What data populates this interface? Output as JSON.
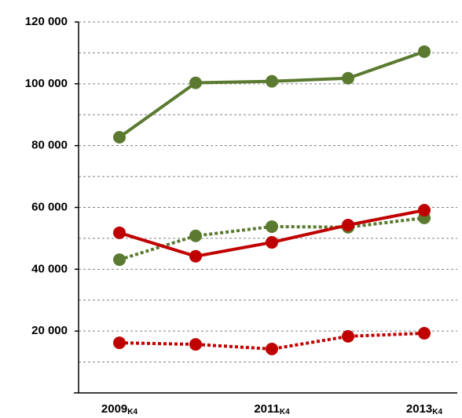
{
  "chart_data": {
    "type": "line",
    "categories": [
      "2009K4",
      null,
      "2011K4",
      null,
      "2013K4"
    ],
    "series": [
      {
        "color": "#5b7a30",
        "dash": "solid",
        "values": [
          82700,
          100300,
          100800,
          101800,
          110400
        ]
      },
      {
        "color": "#5b7a30",
        "dash": "dotted",
        "values": [
          43100,
          50800,
          53800,
          53600,
          56600
        ]
      },
      {
        "color": "#c00000",
        "dash": "solid",
        "values": [
          51800,
          44200,
          48700,
          54300,
          59100
        ]
      },
      {
        "color": "#c00000",
        "dash": "dotted",
        "values": [
          16200,
          15700,
          14200,
          18300,
          19300
        ]
      }
    ],
    "ylim": [
      0,
      120000
    ],
    "yticks": [
      {
        "value": 20000,
        "label": "20 000"
      },
      {
        "value": 40000,
        "label": "40 000"
      },
      {
        "value": 60000,
        "label": "60 000"
      },
      {
        "value": 80000,
        "label": "80 000"
      },
      {
        "value": 100000,
        "label": "100 000"
      },
      {
        "value": 120000,
        "label": "120 000"
      }
    ],
    "grid_yticks": [
      10000,
      20000,
      30000,
      40000,
      50000,
      60000,
      70000,
      80000,
      90000,
      100000,
      110000,
      120000
    ],
    "grid": true
  }
}
